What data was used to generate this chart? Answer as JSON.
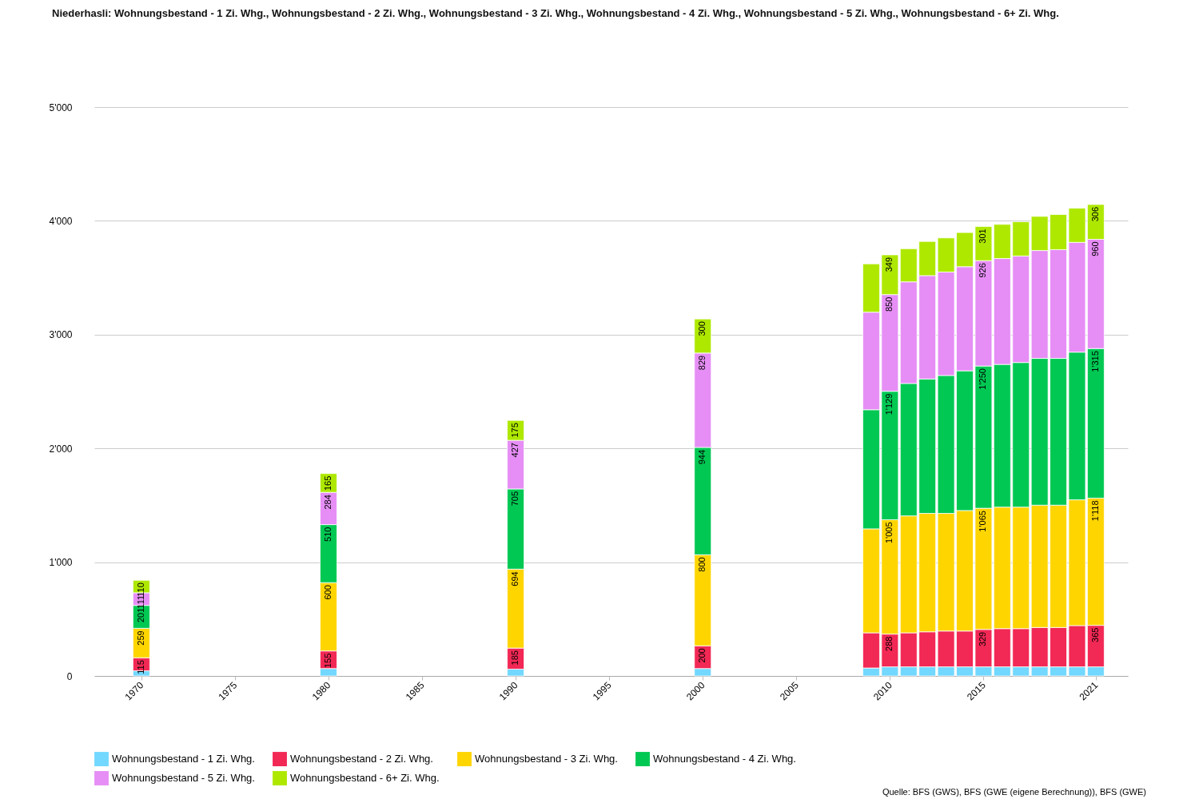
{
  "chart_data": {
    "type": "bar",
    "stacked": true,
    "title": "Niederhasli: Wohnungsbestand - 1 Zi. Whg., Wohnungsbestand - 2 Zi. Whg., Wohnungsbestand - 3 Zi. Whg., Wohnungsbestand - 4 Zi. Whg., Wohnungsbestand - 5 Zi. Whg., Wohnungsbestand - 6+ Zi. Whg.",
    "x": [
      1970,
      1980,
      1990,
      2000,
      2009,
      2010,
      2011,
      2012,
      2013,
      2014,
      2015,
      2016,
      2017,
      2018,
      2019,
      2020,
      2021
    ],
    "xlim": [
      1967.7,
      2022.5
    ],
    "xticks": [
      1970,
      1975,
      1980,
      1985,
      1990,
      1995,
      2000,
      2005,
      2010,
      2015,
      2021
    ],
    "ylim": [
      0,
      5000
    ],
    "yticks": [
      0,
      {
        "value": 1000,
        "label": "1'000"
      },
      {
        "value": 2000,
        "label": "2'000"
      },
      {
        "value": 3000,
        "label": "3'000"
      },
      {
        "value": 4000,
        "label": "4'000"
      },
      {
        "value": 5000,
        "label": "5'000"
      }
    ],
    "grid": "y",
    "legend": "bottom",
    "series": [
      {
        "name": "Wohnungsbestand - 1 Zi. Whg.",
        "color": "#72d8ff",
        "values": [
          45,
          65,
          60,
          65,
          70,
          80,
          80,
          80,
          80,
          80,
          80,
          80,
          80,
          80,
          80,
          80,
          80
        ],
        "value_labels": [
          null,
          null,
          null,
          null,
          null,
          null,
          null,
          null,
          null,
          null,
          null,
          null,
          null,
          null,
          null,
          null,
          null
        ]
      },
      {
        "name": "Wohnungsbestand - 2 Zi. Whg.",
        "color": "#f22855",
        "values": [
          115,
          155,
          185,
          200,
          309,
          288,
          299,
          308,
          315,
          315,
          329,
          336,
          336,
          346,
          346,
          363,
          365
        ],
        "value_labels": [
          "115",
          "155",
          "185",
          "200",
          null,
          "288",
          null,
          null,
          null,
          null,
          "329",
          null,
          null,
          null,
          null,
          null,
          "365"
        ]
      },
      {
        "name": "Wohnungsbestand - 3 Zi. Whg.",
        "color": "#ffd500",
        "values": [
          259,
          600,
          694,
          800,
          914,
          1005,
          1028,
          1041,
          1034,
          1059,
          1065,
          1068,
          1068,
          1075,
          1075,
          1105,
          1118
        ],
        "value_labels": [
          "259",
          "600",
          "694",
          "800",
          null,
          "1'005",
          null,
          null,
          null,
          null,
          "1'065",
          null,
          null,
          null,
          null,
          null,
          "1'118"
        ]
      },
      {
        "name": "Wohnungsbestand - 4 Zi. Whg.",
        "color": "#00c853",
        "values": [
          201,
          510,
          705,
          944,
          1047,
          1129,
          1164,
          1181,
          1212,
          1228,
          1250,
          1254,
          1271,
          1290,
          1290,
          1298,
          1315
        ],
        "value_labels": [
          "201",
          "510",
          "705",
          "944",
          null,
          "1'129",
          null,
          null,
          null,
          null,
          "1'250",
          null,
          null,
          null,
          null,
          null,
          "1'315"
        ]
      },
      {
        "name": "Wohnungsbestand - 5 Zi. Whg.",
        "color": "#e68ef5",
        "values": [
          111,
          284,
          427,
          829,
          857,
          850,
          893,
          909,
          909,
          915,
          926,
          931,
          936,
          948,
          956,
          965,
          960
        ],
        "value_labels": [
          "111",
          "284",
          "427",
          "829",
          null,
          "850",
          null,
          null,
          null,
          null,
          "926",
          null,
          null,
          null,
          null,
          null,
          "960"
        ]
      },
      {
        "name": "Wohnungsbestand - 6+ Zi. Whg.",
        "color": "#aee800",
        "values": [
          110,
          165,
          175,
          300,
          425,
          349,
          291,
          300,
          300,
          300,
          301,
          300,
          301,
          300,
          309,
          300,
          306
        ],
        "value_labels": [
          "110",
          "165",
          "175",
          "300",
          null,
          "349",
          null,
          null,
          null,
          null,
          "301",
          null,
          null,
          null,
          null,
          null,
          "306"
        ]
      }
    ],
    "annotations": [
      "Quelle: BFS (GWS), BFS (GWE (eigene Berechnung)), BFS (GWE)"
    ]
  }
}
